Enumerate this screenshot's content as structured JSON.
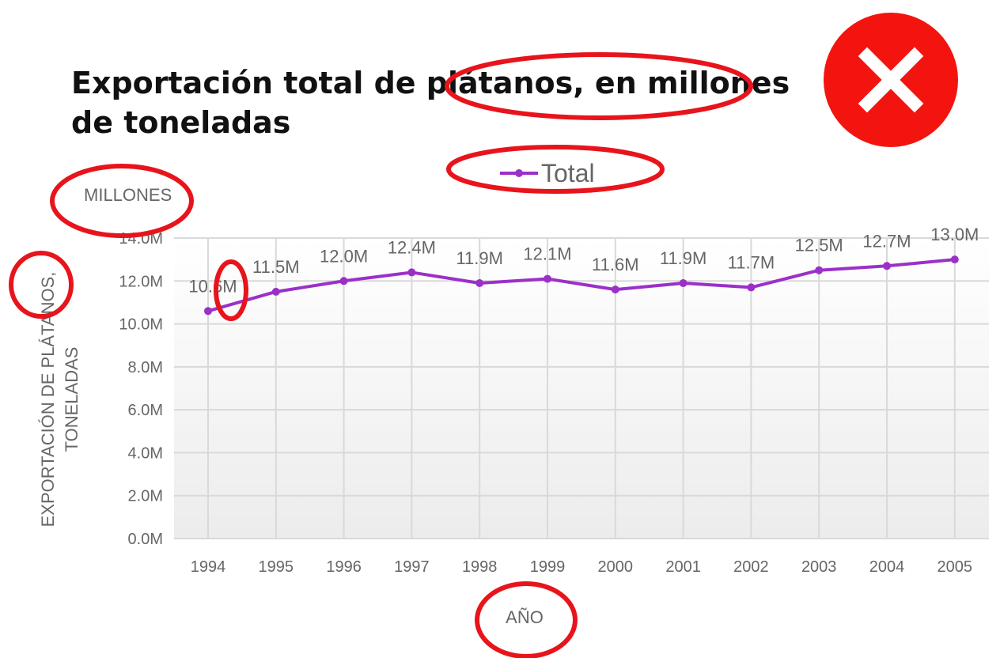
{
  "colors": {
    "series": "#9b30c8",
    "annotation": "#e8141c",
    "grid": "#d9d9d9",
    "text": "#666666",
    "title": "#111111"
  },
  "icons": {
    "error_badge": "close-icon"
  },
  "chart_data": {
    "type": "line",
    "title": "Exportación total de plátanos, en millones de toneladas",
    "title_lines": [
      "Exportación total de plátanos, en millones",
      "de toneladas"
    ],
    "unit_label": "MILLONES",
    "xlabel": "AÑO",
    "ylabel": "EXPORTACIÓN DE PLÁTANOS, TONELADAS",
    "ylabel_lines": [
      "EXPORTACIÓN DE PLÁTANOS,",
      "TONELADAS"
    ],
    "categories": [
      "1994",
      "1995",
      "1996",
      "1997",
      "1998",
      "1999",
      "2000",
      "2001",
      "2002",
      "2003",
      "2004",
      "2005"
    ],
    "series": [
      {
        "name": "Total",
        "values": [
          10.6,
          11.5,
          12.0,
          12.4,
          11.9,
          12.1,
          11.6,
          11.9,
          11.7,
          12.5,
          12.7,
          13.0
        ],
        "labels": [
          "10.6M",
          "11.5M",
          "12.0M",
          "12.4M",
          "11.9M",
          "12.1M",
          "11.6M",
          "11.9M",
          "11.7M",
          "12.5M",
          "12.7M",
          "13.0M"
        ]
      }
    ],
    "yticks": [
      "0.0M",
      "2.0M",
      "4.0M",
      "6.0M",
      "8.0M",
      "10.0M",
      "12.0M",
      "14.0M"
    ],
    "ylim": [
      0,
      14
    ],
    "grid": true,
    "legend": "top"
  }
}
